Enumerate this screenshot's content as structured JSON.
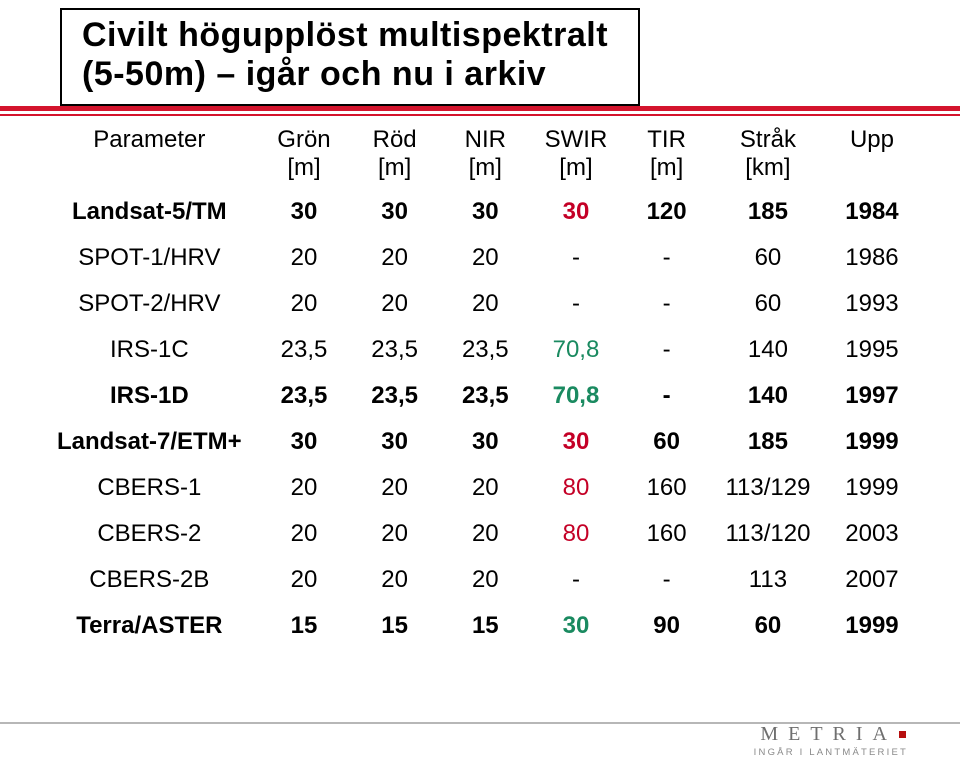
{
  "title": {
    "line1": "Civilt högupplöst multispektralt",
    "line2": "(5-50m) – igår och nu i arkiv"
  },
  "table": {
    "headers": [
      {
        "l1": "Parameter",
        "l2": ""
      },
      {
        "l1": "Grön",
        "l2": "[m]"
      },
      {
        "l1": "Röd",
        "l2": "[m]"
      },
      {
        "l1": "NIR",
        "l2": "[m]"
      },
      {
        "l1": "SWIR",
        "l2": "[m]"
      },
      {
        "l1": "TIR",
        "l2": "[m]"
      },
      {
        "l1": "Stråk",
        "l2": "[km]"
      },
      {
        "l1": "Upp",
        "l2": ""
      }
    ],
    "rows": [
      {
        "param": "Landsat-5/TM",
        "bold": true,
        "cells": [
          {
            "v": "30"
          },
          {
            "v": "30"
          },
          {
            "v": "30"
          },
          {
            "v": "30",
            "c": "#c40026"
          },
          {
            "v": "120"
          },
          {
            "v": "185"
          },
          {
            "v": "1984"
          }
        ]
      },
      {
        "param": "SPOT-1/HRV",
        "bold": false,
        "cells": [
          {
            "v": "20"
          },
          {
            "v": "20"
          },
          {
            "v": "20"
          },
          {
            "v": "-"
          },
          {
            "v": "-"
          },
          {
            "v": "60"
          },
          {
            "v": "1986"
          }
        ]
      },
      {
        "param": "SPOT-2/HRV",
        "bold": false,
        "cells": [
          {
            "v": "20"
          },
          {
            "v": "20"
          },
          {
            "v": "20"
          },
          {
            "v": "-"
          },
          {
            "v": "-"
          },
          {
            "v": "60"
          },
          {
            "v": "1993"
          }
        ]
      },
      {
        "param": "IRS-1C",
        "bold": false,
        "cells": [
          {
            "v": "23,5"
          },
          {
            "v": "23,5"
          },
          {
            "v": "23,5"
          },
          {
            "v": "70,8",
            "c": "#1a8a60"
          },
          {
            "v": "-"
          },
          {
            "v": "140"
          },
          {
            "v": "1995"
          }
        ]
      },
      {
        "param": "IRS-1D",
        "bold": true,
        "cells": [
          {
            "v": "23,5"
          },
          {
            "v": "23,5"
          },
          {
            "v": "23,5"
          },
          {
            "v": "70,8",
            "c": "#1a8a60"
          },
          {
            "v": "-"
          },
          {
            "v": "140"
          },
          {
            "v": "1997"
          }
        ]
      },
      {
        "param": "Landsat-7/ETM+",
        "bold": true,
        "cells": [
          {
            "v": "30"
          },
          {
            "v": "30"
          },
          {
            "v": "30"
          },
          {
            "v": "30",
            "c": "#c40026"
          },
          {
            "v": "60"
          },
          {
            "v": "185"
          },
          {
            "v": "1999"
          }
        ]
      },
      {
        "param": "CBERS-1",
        "bold": false,
        "cells": [
          {
            "v": "20"
          },
          {
            "v": "20"
          },
          {
            "v": "20"
          },
          {
            "v": "80",
            "c": "#c40026"
          },
          {
            "v": "160"
          },
          {
            "v": "113/129"
          },
          {
            "v": "1999"
          }
        ]
      },
      {
        "param": "CBERS-2",
        "bold": false,
        "cells": [
          {
            "v": "20"
          },
          {
            "v": "20"
          },
          {
            "v": "20"
          },
          {
            "v": "80",
            "c": "#c40026"
          },
          {
            "v": "160"
          },
          {
            "v": "113/120"
          },
          {
            "v": "2003"
          }
        ]
      },
      {
        "param": "CBERS-2B",
        "bold": false,
        "cells": [
          {
            "v": "20"
          },
          {
            "v": "20"
          },
          {
            "v": "20"
          },
          {
            "v": "-"
          },
          {
            "v": "-"
          },
          {
            "v": "113"
          },
          {
            "v": "2007"
          }
        ]
      },
      {
        "param": "Terra/ASTER",
        "bold": true,
        "cells": [
          {
            "v": "15"
          },
          {
            "v": "15"
          },
          {
            "v": "15"
          },
          {
            "v": "30",
            "c": "#1a8a60"
          },
          {
            "v": "90"
          },
          {
            "v": "60"
          },
          {
            "v": "1999"
          }
        ]
      }
    ]
  },
  "footer": {
    "brand": "METRIA",
    "sub": "INGÅR I LANTMÄTERIET"
  },
  "colors": {
    "accent_red": "#d4142d",
    "text": "#000000",
    "cell_red": "#c40026",
    "cell_green": "#1a8a60",
    "footer_gray": "#6f6f6f",
    "rule_gray": "#b7b7b7"
  }
}
